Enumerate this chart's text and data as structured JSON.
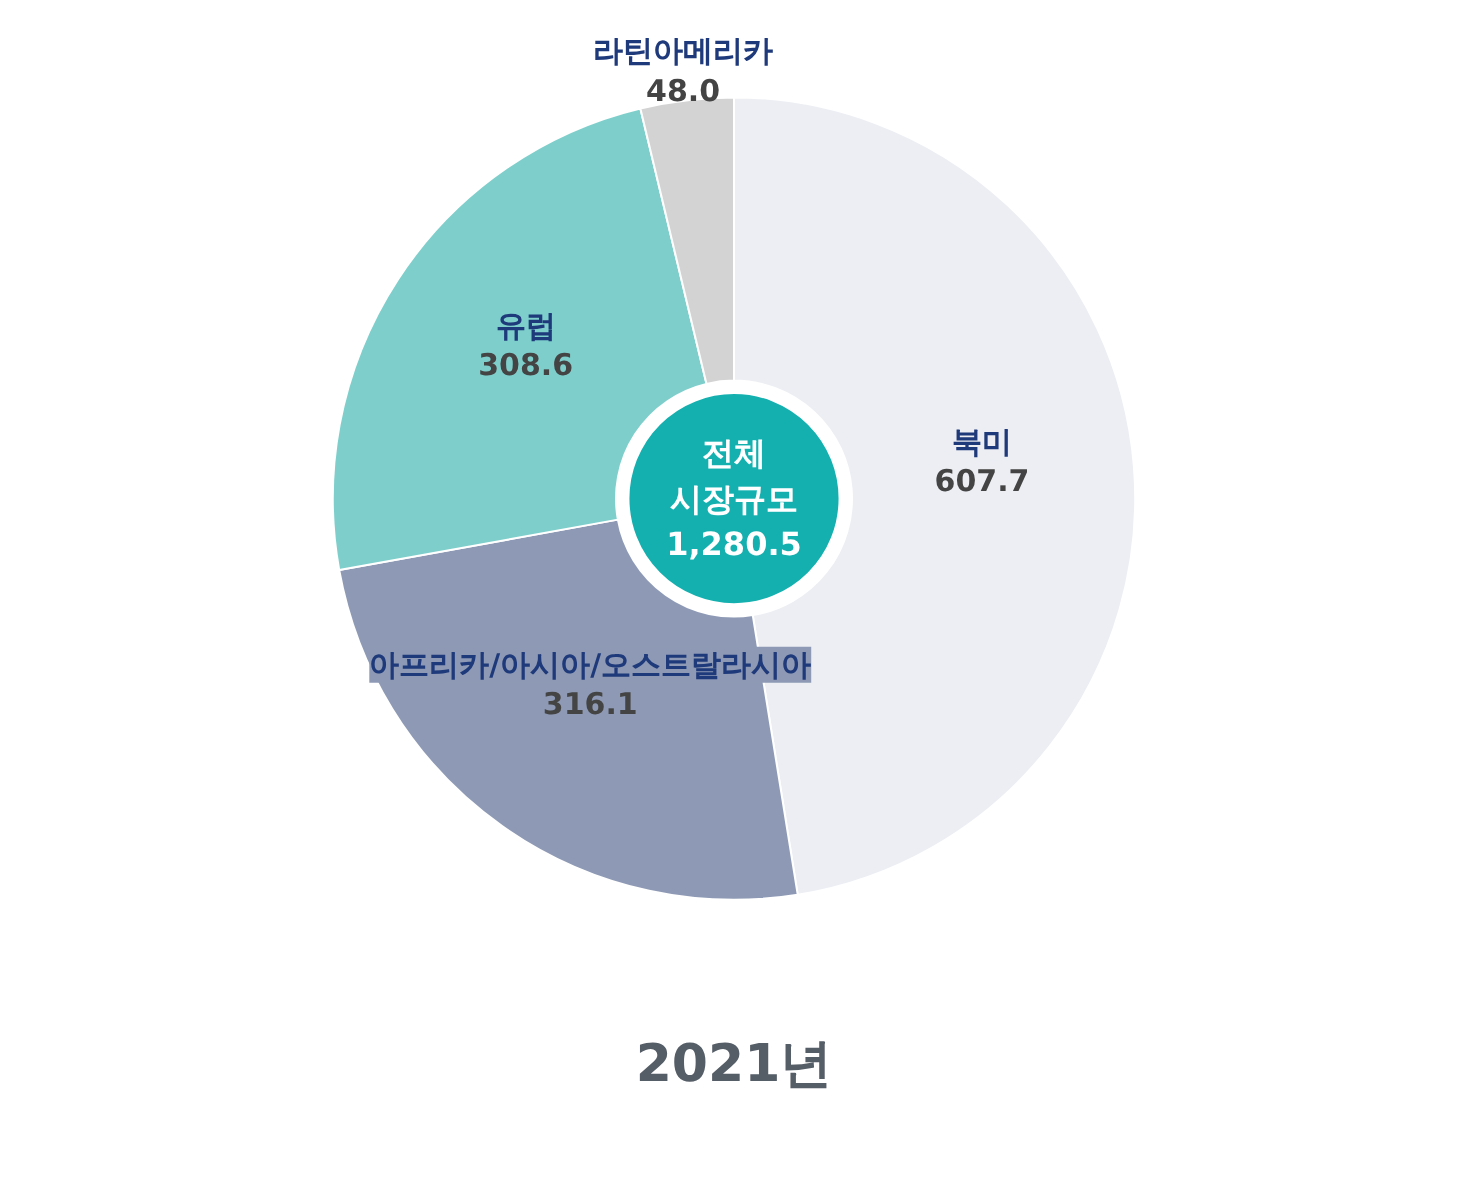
{
  "chart_data": {
    "type": "donut",
    "title": "2021년",
    "categories": [
      "북미",
      "아프리카/아시아/오스트랄라시아",
      "유럽",
      "라틴아메리카"
    ],
    "values": [
      607.7,
      316.1,
      308.6,
      48.0
    ],
    "colors": [
      "#eceef3",
      "#8e9ab5",
      "#7ecfcc",
      "#d3d3d3"
    ],
    "value_labels": [
      "607.7",
      "316.1",
      "308.6",
      "48.0"
    ],
    "annotations": [
      "전체\n시장규모\n1,280.5"
    ]
  }
}
